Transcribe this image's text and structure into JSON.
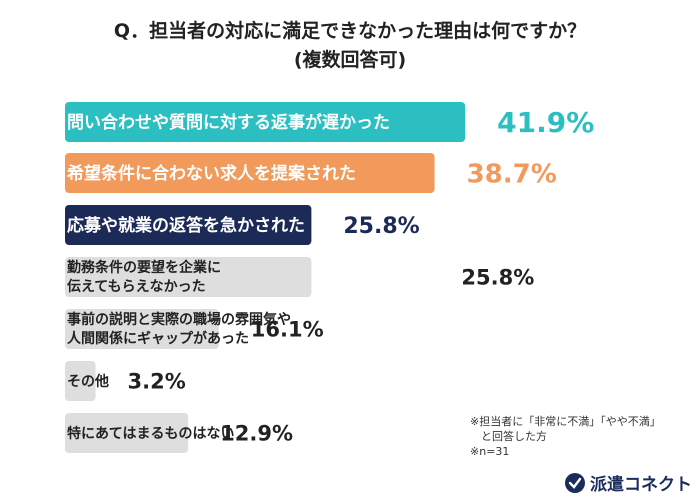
{
  "title": {
    "line1": "Q．担当者の対応に満足できなかった理由は何ですか？",
    "line2": "(複数回答可)"
  },
  "chart_data": {
    "type": "bar",
    "orientation": "horizontal",
    "categories": [
      [
        "問い合わせや質問に対する返事が遅かった"
      ],
      [
        "希望条件に合わない求人を提案された"
      ],
      [
        "応募や就業の返答を急かされた"
      ],
      [
        "勤務条件の要望を企業に",
        "伝えてもらえなかった"
      ],
      [
        "事前の説明と実際の職場の雰囲気や",
        "人間関係にギャップがあった"
      ],
      [
        "その他"
      ],
      [
        "特にあてはまるものはない"
      ]
    ],
    "values": [
      41.9,
      38.7,
      25.8,
      25.8,
      16.1,
      3.2,
      12.9
    ],
    "value_labels": [
      "41.9%",
      "38.7%",
      "25.8%",
      "25.8%",
      "16.1%",
      "3.2%",
      "12.9%"
    ],
    "bar_colors": [
      "#2bbfc1",
      "#f19a5c",
      "#1c2a58",
      "#dedede",
      "#dedede",
      "#dedede",
      "#dedede"
    ],
    "label_colors": [
      "#ffffff",
      "#ffffff",
      "#ffffff",
      "#222222",
      "#222222",
      "#222222",
      "#222222"
    ],
    "value_colors": [
      "#2bbfc1",
      "#f19a5c",
      "#1c2a58",
      "#222222",
      "#222222",
      "#222222",
      "#222222"
    ]
  },
  "notes": {
    "line1": "※担当者に「非常に不満」「やや不満」",
    "line2": "　と回答した方",
    "line3": "※n=31"
  },
  "logo": {
    "text": "派遣コネクト",
    "color": "#1a2c5c"
  }
}
